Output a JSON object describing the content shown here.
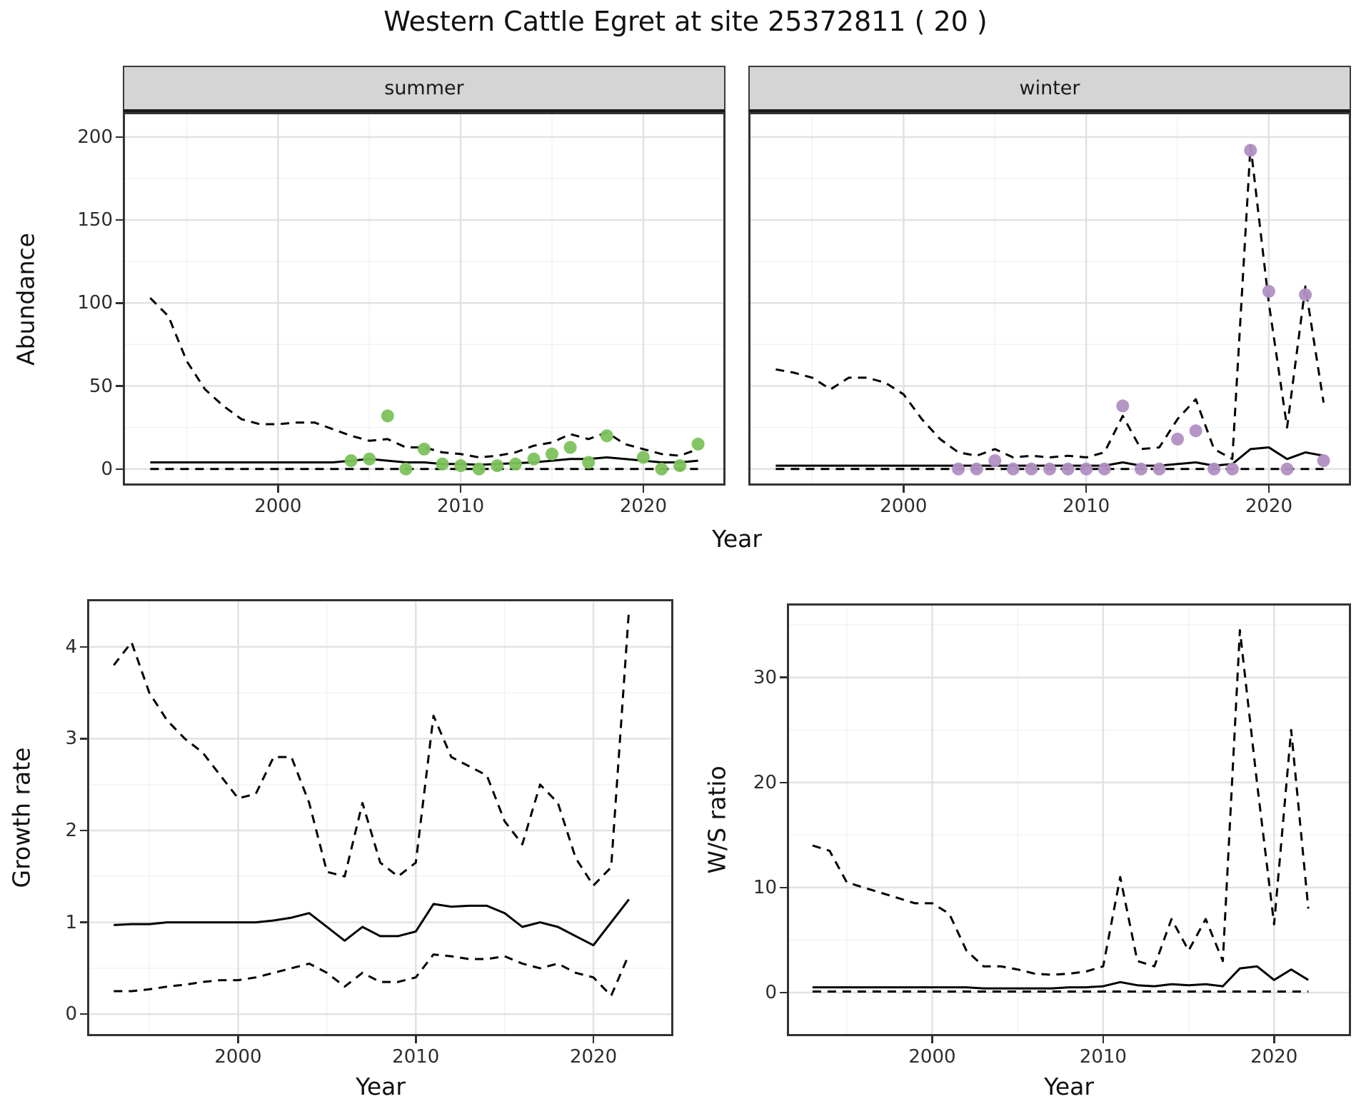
{
  "title": "Western Cattle Egret at site 25372811 ( 20 )",
  "colors": {
    "summer_points": "#7cc25b",
    "winter_points": "#b18fc3",
    "median_line": "#000000",
    "ci_line": "#000000",
    "grid_major": "#e2e2e2",
    "grid_minor": "#f2f2f2",
    "strip_bg": "#d5d5d5",
    "panel_border": "#333333"
  },
  "facets": [
    "summer",
    "winter"
  ],
  "chart_data": [
    {
      "id": "abundance-summer",
      "type": "line",
      "title": "summer",
      "xlabel": "Year",
      "ylabel": "Abundance",
      "xlim": [
        1991.5,
        2024.5
      ],
      "ylim": [
        -10,
        215
      ],
      "xticks": [
        2000,
        2010,
        2020
      ],
      "yticks": [
        0,
        50,
        100,
        150,
        200
      ],
      "grid": true,
      "legend": "none",
      "x": [
        1993,
        1994,
        1995,
        1996,
        1997,
        1998,
        1999,
        2000,
        2001,
        2002,
        2003,
        2004,
        2005,
        2006,
        2007,
        2008,
        2009,
        2010,
        2011,
        2012,
        2013,
        2014,
        2015,
        2016,
        2017,
        2018,
        2019,
        2020,
        2021,
        2022,
        2023
      ],
      "series": [
        {
          "name": "upper-ci",
          "style": "dashed",
          "color": "#000000",
          "y": [
            103,
            92,
            65,
            48,
            38,
            30,
            27,
            27,
            28,
            28,
            24,
            20,
            17,
            18,
            13,
            13,
            10,
            9,
            7,
            8,
            10,
            14,
            16,
            21,
            18,
            22,
            15,
            12,
            9,
            8,
            12
          ]
        },
        {
          "name": "median",
          "style": "solid",
          "color": "#000000",
          "y": [
            4,
            4,
            4,
            4,
            4,
            4,
            4,
            4,
            4,
            4,
            4,
            5,
            6,
            5,
            4,
            4,
            3,
            3,
            2.5,
            3,
            3.5,
            4,
            5,
            6,
            6,
            7,
            6,
            5,
            4,
            4,
            5
          ]
        },
        {
          "name": "lower-ci",
          "style": "dashed",
          "color": "#000000",
          "y": [
            0,
            0,
            0,
            0,
            0,
            0,
            0,
            0,
            0,
            0,
            0,
            0,
            0,
            0,
            0,
            0,
            0,
            0,
            0,
            0,
            0,
            0,
            0,
            0,
            0,
            0,
            0,
            0,
            0,
            0,
            0
          ]
        }
      ],
      "points": [
        {
          "name": "observed-summer",
          "color": "#7cc25b",
          "x": [
            2004,
            2005,
            2006,
            2007,
            2008,
            2009,
            2010,
            2011,
            2012,
            2013,
            2014,
            2015,
            2016,
            2017,
            2018,
            2020,
            2021,
            2022,
            2023
          ],
          "y": [
            5,
            6,
            32,
            0,
            12,
            3,
            2,
            0,
            2,
            3,
            6,
            9,
            13,
            4,
            20,
            7,
            0,
            2,
            15
          ]
        }
      ]
    },
    {
      "id": "abundance-winter",
      "type": "line",
      "title": "winter",
      "xlabel": "Year",
      "ylabel": "Abundance",
      "xlim": [
        1991.5,
        2024.5
      ],
      "ylim": [
        -10,
        215
      ],
      "xticks": [
        2000,
        2010,
        2020
      ],
      "yticks": [
        0,
        50,
        100,
        150,
        200
      ],
      "grid": true,
      "legend": "none",
      "x": [
        1993,
        1994,
        1995,
        1996,
        1997,
        1998,
        1999,
        2000,
        2001,
        2002,
        2003,
        2004,
        2005,
        2006,
        2007,
        2008,
        2009,
        2010,
        2011,
        2012,
        2013,
        2014,
        2015,
        2016,
        2017,
        2018,
        2019,
        2020,
        2021,
        2022,
        2023
      ],
      "series": [
        {
          "name": "upper-ci",
          "style": "dashed",
          "color": "#000000",
          "y": [
            60,
            58,
            55,
            48,
            55,
            55,
            52,
            45,
            30,
            18,
            10,
            8,
            12,
            7,
            8,
            7,
            8,
            7,
            10,
            32,
            12,
            13,
            30,
            42,
            12,
            6,
            195,
            100,
            25,
            110,
            40
          ]
        },
        {
          "name": "median",
          "style": "solid",
          "color": "#000000",
          "y": [
            2,
            2,
            2,
            2,
            2,
            2,
            2,
            2,
            2,
            2,
            2,
            2,
            2,
            2,
            2,
            2,
            2,
            2,
            2,
            4,
            2,
            2,
            3,
            4,
            2,
            3,
            12,
            13,
            6,
            10,
            8
          ]
        },
        {
          "name": "lower-ci",
          "style": "dashed",
          "color": "#000000",
          "y": [
            0,
            0,
            0,
            0,
            0,
            0,
            0,
            0,
            0,
            0,
            0,
            0,
            0,
            0,
            0,
            0,
            0,
            0,
            0,
            0,
            0,
            0,
            0,
            0,
            0,
            0,
            0,
            0,
            0,
            0,
            0
          ]
        }
      ],
      "points": [
        {
          "name": "observed-winter",
          "color": "#b18fc3",
          "x": [
            2003,
            2004,
            2005,
            2006,
            2007,
            2008,
            2009,
            2010,
            2011,
            2012,
            2013,
            2014,
            2015,
            2016,
            2017,
            2018,
            2019,
            2020,
            2021,
            2022,
            2023
          ],
          "y": [
            0,
            0,
            5,
            0,
            0,
            0,
            0,
            0,
            0,
            38,
            0,
            0,
            18,
            23,
            0,
            0,
            192,
            107,
            0,
            105,
            5
          ]
        }
      ]
    },
    {
      "id": "growth-rate",
      "type": "line",
      "title": "",
      "xlabel": "Year",
      "ylabel": "Growth rate",
      "xlim": [
        1991.5,
        2024.5
      ],
      "ylim": [
        -0.24,
        4.52
      ],
      "xticks": [
        2000,
        2010,
        2020
      ],
      "yticks": [
        0,
        1,
        2,
        3,
        4
      ],
      "grid": true,
      "legend": "none",
      "x": [
        1993,
        1994,
        1995,
        1996,
        1997,
        1998,
        1999,
        2000,
        2001,
        2002,
        2003,
        2004,
        2005,
        2006,
        2007,
        2008,
        2009,
        2010,
        2011,
        2012,
        2013,
        2014,
        2015,
        2016,
        2017,
        2018,
        2019,
        2020,
        2021,
        2022
      ],
      "series": [
        {
          "name": "upper-ci",
          "style": "dashed",
          "color": "#000000",
          "y": [
            3.8,
            4.05,
            3.5,
            3.2,
            3.0,
            2.85,
            2.6,
            2.35,
            2.4,
            2.8,
            2.8,
            2.3,
            1.55,
            1.5,
            2.3,
            1.65,
            1.5,
            1.65,
            3.25,
            2.8,
            2.7,
            2.6,
            2.1,
            1.85,
            2.5,
            2.3,
            1.7,
            1.4,
            1.6,
            4.4
          ]
        },
        {
          "name": "median",
          "style": "solid",
          "color": "#000000",
          "y": [
            0.97,
            0.98,
            0.98,
            1.0,
            1.0,
            1.0,
            1.0,
            1.0,
            1.0,
            1.02,
            1.05,
            1.1,
            0.95,
            0.8,
            0.95,
            0.85,
            0.85,
            0.9,
            1.2,
            1.17,
            1.18,
            1.18,
            1.1,
            0.95,
            1.0,
            0.95,
            0.85,
            0.75,
            1.0,
            1.25
          ]
        },
        {
          "name": "lower-ci",
          "style": "dashed",
          "color": "#000000",
          "y": [
            0.25,
            0.25,
            0.27,
            0.3,
            0.32,
            0.35,
            0.37,
            0.37,
            0.4,
            0.45,
            0.5,
            0.55,
            0.45,
            0.3,
            0.45,
            0.35,
            0.35,
            0.4,
            0.65,
            0.63,
            0.6,
            0.6,
            0.63,
            0.55,
            0.5,
            0.55,
            0.45,
            0.4,
            0.2,
            0.65
          ]
        }
      ],
      "points": []
    },
    {
      "id": "ws-ratio",
      "type": "line",
      "title": "",
      "xlabel": "Year",
      "ylabel": "W/S ratio",
      "xlim": [
        1991.5,
        2024.5
      ],
      "ylim": [
        -4.15,
        37.05
      ],
      "xticks": [
        2000,
        2010,
        2020
      ],
      "yticks": [
        0,
        10,
        20,
        30
      ],
      "grid": true,
      "legend": "none",
      "x": [
        1993,
        1994,
        1995,
        1996,
        1997,
        1998,
        1999,
        2000,
        2001,
        2002,
        2003,
        2004,
        2005,
        2006,
        2007,
        2008,
        2009,
        2010,
        2011,
        2012,
        2013,
        2014,
        2015,
        2016,
        2017,
        2018,
        2019,
        2020,
        2021,
        2022
      ],
      "series": [
        {
          "name": "upper-ci",
          "style": "dashed",
          "color": "#000000",
          "y": [
            14,
            13.5,
            10.5,
            10,
            9.5,
            9,
            8.5,
            8.5,
            7.5,
            4,
            2.5,
            2.5,
            2.2,
            1.8,
            1.7,
            1.8,
            2.0,
            2.5,
            11,
            3,
            2.5,
            7,
            4,
            7,
            3,
            34.5,
            20,
            6.5,
            25,
            8
          ]
        },
        {
          "name": "median",
          "style": "solid",
          "color": "#000000",
          "y": [
            0.5,
            0.5,
            0.5,
            0.5,
            0.5,
            0.5,
            0.5,
            0.5,
            0.5,
            0.5,
            0.4,
            0.4,
            0.4,
            0.4,
            0.4,
            0.5,
            0.5,
            0.6,
            1.0,
            0.7,
            0.6,
            0.8,
            0.7,
            0.8,
            0.6,
            2.3,
            2.5,
            1.2,
            2.2,
            1.2
          ]
        },
        {
          "name": "lower-ci",
          "style": "dashed",
          "color": "#000000",
          "y": [
            0.1,
            0.1,
            0.1,
            0.1,
            0.1,
            0.1,
            0.1,
            0.1,
            0.1,
            0.1,
            0.1,
            0.1,
            0.1,
            0.1,
            0.1,
            0.1,
            0.1,
            0.1,
            0.1,
            0.1,
            0.1,
            0.1,
            0.1,
            0.1,
            0.1,
            0.1,
            0.1,
            0.1,
            0.1,
            0.1
          ]
        }
      ],
      "points": []
    }
  ]
}
